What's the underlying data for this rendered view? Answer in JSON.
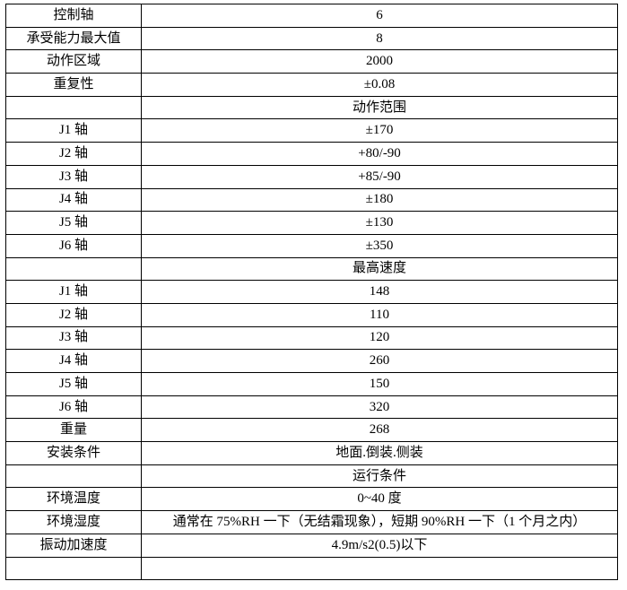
{
  "rows": [
    {
      "label": "控制轴",
      "value": "6"
    },
    {
      "label": "承受能力最大值",
      "value": "8"
    },
    {
      "label": "动作区域",
      "value": "2000"
    },
    {
      "label": "重复性",
      "value": "±0.08"
    },
    {
      "label": "",
      "value": "动作范围"
    },
    {
      "label": "J1 轴",
      "value": "±170"
    },
    {
      "label": "J2 轴",
      "value": "+80/-90"
    },
    {
      "label": "J3 轴",
      "value": "+85/-90"
    },
    {
      "label": "J4 轴",
      "value": "±180"
    },
    {
      "label": "J5 轴",
      "value": "±130"
    },
    {
      "label": "J6 轴",
      "value": "±350"
    },
    {
      "label": "",
      "value": "最高速度"
    },
    {
      "label": "J1 轴",
      "value": "148"
    },
    {
      "label": "J2 轴",
      "value": "110"
    },
    {
      "label": "J3 轴",
      "value": "120"
    },
    {
      "label": "J4 轴",
      "value": "260"
    },
    {
      "label": "J5 轴",
      "value": "150"
    },
    {
      "label": "J6 轴",
      "value": "320"
    },
    {
      "label": "重量",
      "value": "268"
    },
    {
      "label": "安装条件",
      "value": "地面.倒装.侧装"
    },
    {
      "label": "",
      "value": "运行条件"
    },
    {
      "label": "环境温度",
      "value": "0~40 度"
    },
    {
      "label": "环境湿度",
      "value": "通常在 75%RH 一下（无结霜现象），短期 90%RH 一下（1 个月之内）"
    },
    {
      "label": "振动加速度",
      "value": "4.9m/s2(0.5)以下"
    },
    {
      "label": "",
      "value": ""
    }
  ]
}
